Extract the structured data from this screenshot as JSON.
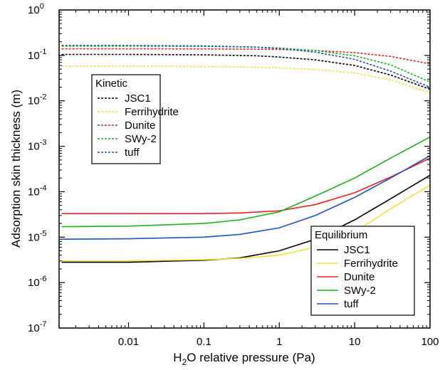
{
  "chart_data": {
    "type": "line",
    "xlabel": {
      "pre": "H",
      "sub": "2",
      "post": "O relative pressure (Pa)"
    },
    "ylabel": "Adsorption skin thickness (m)",
    "xscale": "log",
    "yscale": "log",
    "xlim": [
      0.0012,
      100
    ],
    "ylim": [
      1e-07,
      1
    ],
    "grid": false,
    "x_ticks": [
      {
        "value": 0.01,
        "label": "0.01"
      },
      {
        "value": 0.1,
        "label": "0.1"
      },
      {
        "value": 1,
        "label": "1"
      },
      {
        "value": 10,
        "label": "10"
      },
      {
        "value": 100,
        "label": "100"
      }
    ],
    "y_ticks": [
      {
        "value": 1,
        "mant": "10",
        "exp": "0"
      },
      {
        "value": 0.1,
        "mant": "10",
        "exp": "-1"
      },
      {
        "value": 0.01,
        "mant": "10",
        "exp": "-2"
      },
      {
        "value": 0.001,
        "mant": "10",
        "exp": "-3"
      },
      {
        "value": 0.0001,
        "mant": "10",
        "exp": "-4"
      },
      {
        "value": 1e-05,
        "mant": "10",
        "exp": "-5"
      },
      {
        "value": 1e-06,
        "mant": "10",
        "exp": "-6"
      },
      {
        "value": 1e-07,
        "mant": "10",
        "exp": "-7"
      }
    ],
    "legends": [
      {
        "title": "Kinetic",
        "placement": "upper-left",
        "style": "dashed",
        "entries": [
          "JSC1",
          "Ferrihydrite",
          "Dunite",
          "SWy-2",
          "tuff"
        ]
      },
      {
        "title": "Equilibrium",
        "placement": "lower-right",
        "style": "solid",
        "entries": [
          "JSC1",
          "Ferrihydrite",
          "Dunite",
          "SWy-2",
          "tuff"
        ]
      }
    ],
    "series": [
      {
        "name": "JSC1",
        "group": "Kinetic",
        "color": "#000000",
        "style": "dashed",
        "x": [
          0.0013,
          0.01,
          0.1,
          0.5,
          1,
          3,
          10,
          30,
          100
        ],
        "y": [
          0.105,
          0.105,
          0.103,
          0.098,
          0.092,
          0.08,
          0.06,
          0.037,
          0.018
        ]
      },
      {
        "name": "Ferrihydrite",
        "group": "Kinetic",
        "color": "#f5e040",
        "style": "dashed",
        "x": [
          0.0013,
          0.01,
          0.1,
          0.5,
          1,
          3,
          10,
          30,
          100
        ],
        "y": [
          0.058,
          0.058,
          0.057,
          0.055,
          0.053,
          0.049,
          0.041,
          0.029,
          0.015
        ]
      },
      {
        "name": "Dunite",
        "group": "Kinetic",
        "color": "#e8201e",
        "style": "dashed",
        "x": [
          0.0013,
          0.01,
          0.1,
          0.5,
          1,
          3,
          10,
          30,
          100
        ],
        "y": [
          0.14,
          0.14,
          0.139,
          0.137,
          0.135,
          0.128,
          0.115,
          0.095,
          0.065
        ]
      },
      {
        "name": "SWy-2",
        "group": "Kinetic",
        "color": "#18b418",
        "style": "dashed",
        "x": [
          0.0013,
          0.01,
          0.1,
          0.5,
          1,
          3,
          10,
          30,
          100
        ],
        "y": [
          0.16,
          0.16,
          0.158,
          0.152,
          0.145,
          0.128,
          0.098,
          0.062,
          0.026
        ]
      },
      {
        "name": "tuff",
        "group": "Kinetic",
        "color": "#1c52c8",
        "style": "dashed",
        "x": [
          0.0013,
          0.01,
          0.1,
          0.5,
          1,
          3,
          10,
          30,
          100
        ],
        "y": [
          0.165,
          0.165,
          0.162,
          0.152,
          0.142,
          0.118,
          0.082,
          0.045,
          0.02
        ]
      },
      {
        "name": "JSC1",
        "group": "Equilibrium",
        "color": "#000000",
        "style": "solid",
        "x": [
          0.0013,
          0.01,
          0.1,
          0.3,
          1,
          3,
          10,
          30,
          100
        ],
        "y": [
          2.8e-06,
          2.8e-06,
          3.1e-06,
          3.5e-06,
          5e-06,
          9e-06,
          2.4e-05,
          7e-05,
          0.00023
        ]
      },
      {
        "name": "Ferrihydrite",
        "group": "Equilibrium",
        "color": "#f5e040",
        "style": "solid",
        "x": [
          0.0013,
          0.01,
          0.1,
          0.3,
          1,
          3,
          10,
          30,
          100
        ],
        "y": [
          3e-06,
          3e-06,
          3.2e-06,
          3.4e-06,
          4e-06,
          6e-06,
          1.3e-05,
          4.2e-05,
          0.00014
        ]
      },
      {
        "name": "Dunite",
        "group": "Equilibrium",
        "color": "#e8201e",
        "style": "solid",
        "x": [
          0.0013,
          0.01,
          0.1,
          0.3,
          1,
          3,
          10,
          30,
          100
        ],
        "y": [
          3.3e-05,
          3.3e-05,
          3.3e-05,
          3.4e-05,
          3.8e-05,
          5.2e-05,
          9.5e-05,
          0.00021,
          0.00055
        ]
      },
      {
        "name": "SWy-2",
        "group": "Equilibrium",
        "color": "#18b418",
        "style": "solid",
        "x": [
          0.0013,
          0.01,
          0.1,
          0.3,
          1,
          3,
          10,
          30,
          100
        ],
        "y": [
          1.7e-05,
          1.75e-05,
          2e-05,
          2.4e-05,
          3.6e-05,
          8e-05,
          0.0002,
          0.00055,
          0.0016
        ]
      },
      {
        "name": "tuff",
        "group": "Equilibrium",
        "color": "#1c52c8",
        "style": "solid",
        "x": [
          0.0013,
          0.01,
          0.1,
          0.3,
          1,
          3,
          10,
          30,
          100
        ],
        "y": [
          9e-06,
          9.2e-06,
          1e-05,
          1.15e-05,
          1.6e-05,
          3e-05,
          7.5e-05,
          0.0002,
          0.00062
        ]
      }
    ]
  }
}
